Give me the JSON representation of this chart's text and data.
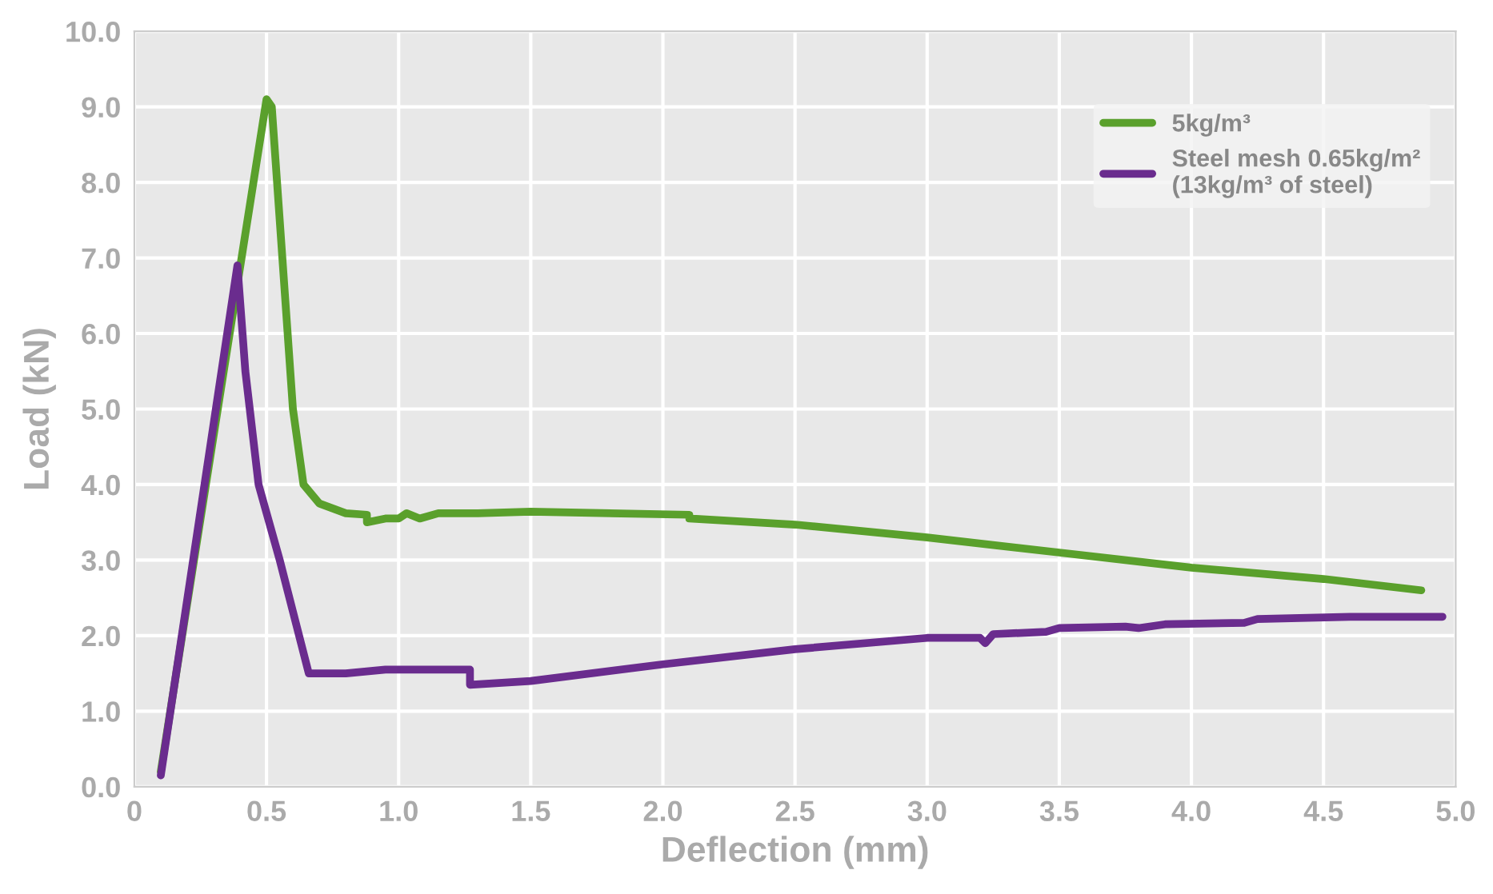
{
  "chart_data": {
    "type": "line",
    "xlabel": "Deflection (mm)",
    "ylabel": "Load (kN)",
    "xlim": [
      0,
      5
    ],
    "ylim": [
      0,
      10
    ],
    "xticks": [
      0,
      {
        "value": 0.5,
        "label": "0.5"
      },
      {
        "value": 1,
        "label": "1.0"
      },
      {
        "value": 1.5,
        "label": "1.5"
      },
      {
        "value": 2,
        "label": "2.0"
      },
      {
        "value": 2.5,
        "label": "2.5"
      },
      {
        "value": 3,
        "label": "3.0"
      },
      {
        "value": 3.5,
        "label": "3.5"
      },
      {
        "value": 4,
        "label": "4.0"
      },
      {
        "value": 4.5,
        "label": "4.5"
      },
      {
        "value": 5,
        "label": "5.0"
      }
    ],
    "yticks": [
      {
        "value": 0,
        "label": "0.0"
      },
      {
        "value": 1,
        "label": "1.0"
      },
      {
        "value": 2,
        "label": "2.0"
      },
      {
        "value": 3,
        "label": "3.0"
      },
      {
        "value": 4,
        "label": "4.0"
      },
      {
        "value": 5,
        "label": "5.0"
      },
      {
        "value": 6,
        "label": "6.0"
      },
      {
        "value": 7,
        "label": "7.0"
      },
      {
        "value": 8,
        "label": "8.0"
      },
      {
        "value": 9,
        "label": "9.0"
      },
      {
        "value": 10,
        "label": "10.0"
      }
    ],
    "grid": true,
    "legend": "top right",
    "marker": "none",
    "line_style": "solid",
    "series": [
      {
        "name": "5kg/m³",
        "color": "#5aa02c",
        "x": [
          0.1,
          0.5,
          0.52,
          0.6,
          0.64,
          0.7,
          0.8,
          0.88,
          0.88,
          0.95,
          1.0,
          1.03,
          1.08,
          1.15,
          1.3,
          1.5,
          2.1,
          2.1,
          2.5,
          3.0,
          3.5,
          4.0,
          4.5,
          4.87
        ],
        "values": [
          0.2,
          9.1,
          9.0,
          5.0,
          4.0,
          3.75,
          3.62,
          3.6,
          3.5,
          3.55,
          3.55,
          3.62,
          3.55,
          3.62,
          3.62,
          3.64,
          3.6,
          3.55,
          3.47,
          3.3,
          3.1,
          2.9,
          2.75,
          2.6
        ]
      },
      {
        "name": "Steel mesh 0.65kg/m²\n(13kg/m³ of steel)",
        "color": "#6a2c8e",
        "x": [
          0.1,
          0.39,
          0.42,
          0.47,
          0.55,
          0.66,
          0.8,
          0.95,
          1.27,
          1.27,
          1.5,
          2.0,
          2.5,
          3.0,
          3.2,
          3.22,
          3.25,
          3.45,
          3.5,
          3.75,
          3.8,
          3.9,
          4.2,
          4.25,
          4.6,
          4.95
        ],
        "values": [
          0.15,
          6.9,
          5.5,
          4.0,
          3.0,
          1.5,
          1.5,
          1.55,
          1.55,
          1.35,
          1.4,
          1.62,
          1.82,
          1.97,
          1.97,
          1.9,
          2.02,
          2.05,
          2.1,
          2.12,
          2.1,
          2.15,
          2.17,
          2.22,
          2.25,
          2.25
        ]
      }
    ]
  }
}
